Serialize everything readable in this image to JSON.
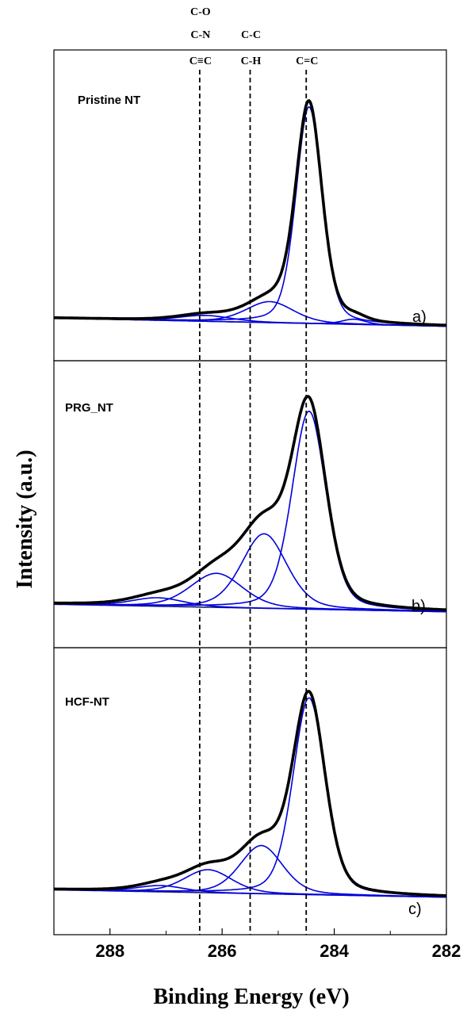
{
  "chart_data": {
    "type": "line",
    "xlabel": "Binding Energy (eV)",
    "ylabel": "Intensity (a.u.)",
    "xlim": [
      289,
      282
    ],
    "x_reversed": true,
    "x_ticks": [
      288,
      286,
      284,
      282
    ],
    "x_tick_labels": [
      "288",
      "286",
      "284",
      "282"
    ],
    "grid": false,
    "reference_lines": [
      {
        "x": 286.4,
        "labels": [
          "C-O",
          "C-N",
          "C≡C"
        ]
      },
      {
        "x": 285.5,
        "labels": [
          "C-C",
          "C-H"
        ]
      },
      {
        "x": 284.5,
        "labels": [
          "C=C"
        ]
      }
    ],
    "panels": [
      {
        "title": "Pristine NT",
        "tag": "a)",
        "baseline": {
          "x": [
            289,
            282
          ],
          "y": [
            0.04,
            0.005
          ]
        },
        "envelope_peak": {
          "x": 284.45,
          "y": 1.0
        },
        "components": [
          {
            "center": 284.45,
            "amplitude": 0.93,
            "fwhm": 0.55
          },
          {
            "center": 285.15,
            "amplitude": 0.09,
            "fwhm": 1.0
          },
          {
            "center": 286.3,
            "amplitude": 0.025,
            "fwhm": 1.1
          },
          {
            "center": 283.65,
            "amplitude": 0.022,
            "fwhm": 0.5
          }
        ]
      },
      {
        "title": "PRG_NT",
        "tag": "b)",
        "baseline": {
          "x": [
            289,
            282
          ],
          "y": [
            0.04,
            0.005
          ]
        },
        "envelope_peak": {
          "x": 284.5,
          "y": 1.0
        },
        "components": [
          {
            "center": 284.45,
            "amplitude": 0.93,
            "fwhm": 0.72
          },
          {
            "center": 285.25,
            "amplitude": 0.35,
            "fwhm": 0.95
          },
          {
            "center": 286.1,
            "amplitude": 0.16,
            "fwhm": 1.1
          },
          {
            "center": 287.15,
            "amplitude": 0.04,
            "fwhm": 1.1
          }
        ]
      },
      {
        "title": "HCF-NT",
        "tag": "c)",
        "baseline": {
          "x": [
            289,
            282
          ],
          "y": [
            0.04,
            0.005
          ]
        },
        "envelope_peak": {
          "x": 284.45,
          "y": 1.0
        },
        "components": [
          {
            "center": 284.45,
            "amplitude": 0.94,
            "fwhm": 0.68
          },
          {
            "center": 285.3,
            "amplitude": 0.23,
            "fwhm": 0.9
          },
          {
            "center": 286.25,
            "amplitude": 0.11,
            "fwhm": 1.0
          },
          {
            "center": 287.1,
            "amplitude": 0.03,
            "fwhm": 1.0
          }
        ]
      }
    ]
  },
  "colors": {
    "envelope": "#000000",
    "components": "#0000dd",
    "baseline": "#1a1a7a",
    "reference_line": "#000000",
    "axes": "#000000"
  }
}
